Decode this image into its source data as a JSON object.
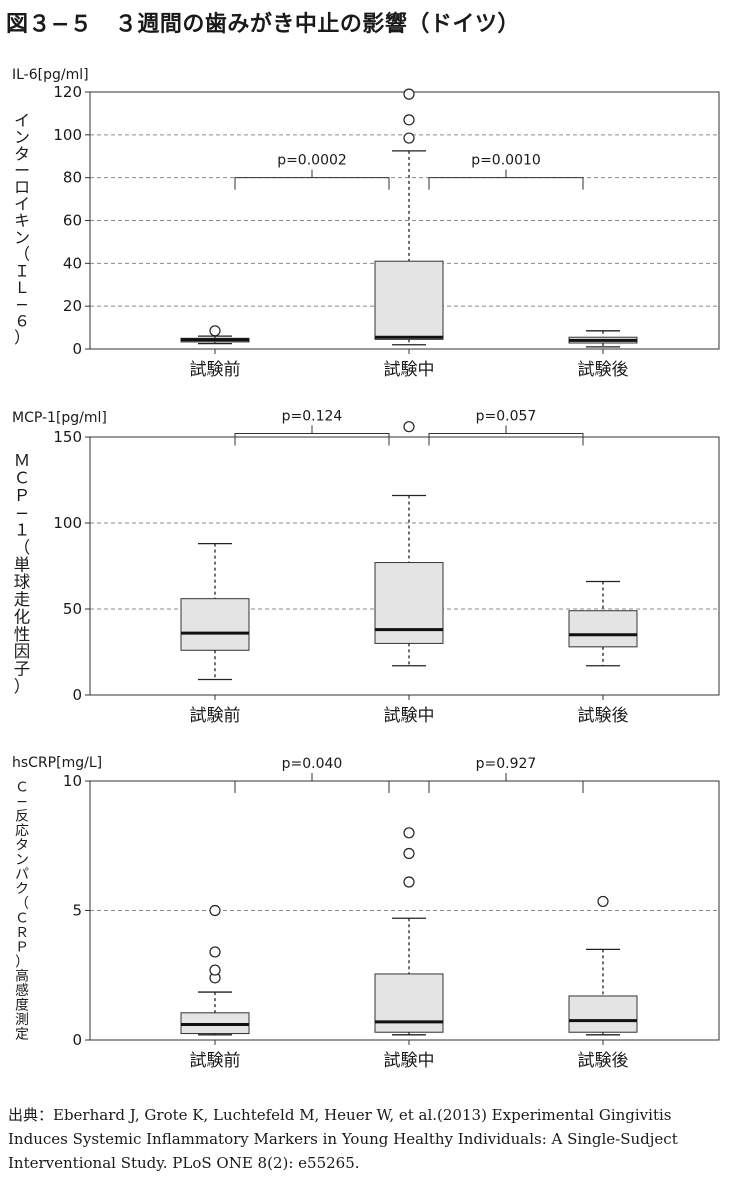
{
  "title": "図３−５　３週間の歯みがき中止の影響（ドイツ）",
  "source_lines": [
    "出典：Eberhard J, Grote K, Luchtefeld M, Heuer W, et al.(2013) Experimental Gingivitis",
    "Induces Systemic Inflammatory Markers in Young Healthy Individuals: A Single-Sudject",
    "Interventional Study. PLoS ONE 8(2): e55265."
  ],
  "chart_data": [
    {
      "type": "box",
      "unit_label": "IL-6[pg/ml]",
      "ylabel": "インターロイキン（ＩＬ−６）",
      "categories": [
        "試験前",
        "試験中",
        "試験後"
      ],
      "ylim": [
        0,
        120
      ],
      "yticks": [
        0,
        20,
        40,
        60,
        80,
        100,
        120
      ],
      "grid": "dashed",
      "boxes": [
        {
          "whisker_low": 2.5,
          "q1": 3.3,
          "median": 4.3,
          "q3": 5.0,
          "whisker_high": 6.0,
          "outliers": [
            8.5
          ]
        },
        {
          "whisker_low": 2.0,
          "q1": 4.5,
          "median": 5.5,
          "q3": 41.0,
          "whisker_high": 92.5,
          "outliers": [
            98.5,
            107,
            119
          ]
        },
        {
          "whisker_low": 1.0,
          "q1": 2.8,
          "median": 4.0,
          "q3": 5.5,
          "whisker_high": 8.5,
          "outliers": []
        }
      ],
      "comparisons": [
        {
          "from": 0,
          "to": 1,
          "label": "p=0.0002",
          "y": 80
        },
        {
          "from": 1,
          "to": 2,
          "label": "p=0.0010",
          "y": 80
        }
      ]
    },
    {
      "type": "box",
      "unit_label": "MCP-1[pg/ml]",
      "ylabel": "ＭＣＰ−１（単球走化性因子）",
      "categories": [
        "試験前",
        "試験中",
        "試験後"
      ],
      "ylim": [
        0,
        150
      ],
      "yticks": [
        0,
        50,
        100,
        150
      ],
      "grid": "dashed",
      "boxes": [
        {
          "whisker_low": 9,
          "q1": 26,
          "median": 36,
          "q3": 56,
          "whisker_high": 88,
          "outliers": []
        },
        {
          "whisker_low": 17,
          "q1": 30,
          "median": 38,
          "q3": 77,
          "whisker_high": 116,
          "outliers": [
            156
          ]
        },
        {
          "whisker_low": 17,
          "q1": 28,
          "median": 35,
          "q3": 49,
          "whisker_high": 66,
          "outliers": []
        }
      ],
      "comparisons": [
        {
          "from": 0,
          "to": 1,
          "label": "p=0.124",
          "y": 152
        },
        {
          "from": 1,
          "to": 2,
          "label": "p=0.057",
          "y": 152
        }
      ]
    },
    {
      "type": "box",
      "unit_label": "hsCRP[mg/L]",
      "ylabel": "Ｃ−反応タンパク（ＣＲＰ）高感度測定",
      "categories": [
        "試験前",
        "試験中",
        "試験後"
      ],
      "ylim": [
        0,
        10
      ],
      "yticks": [
        0,
        5,
        10
      ],
      "grid": "dashed",
      "boxes": [
        {
          "whisker_low": 0.2,
          "q1": 0.25,
          "median": 0.6,
          "q3": 1.05,
          "whisker_high": 1.85,
          "outliers": [
            2.4,
            2.7,
            3.4,
            5.0
          ]
        },
        {
          "whisker_low": 0.2,
          "q1": 0.3,
          "median": 0.7,
          "q3": 2.55,
          "whisker_high": 4.7,
          "outliers": [
            6.1,
            7.2,
            8.0
          ]
        },
        {
          "whisker_low": 0.2,
          "q1": 0.3,
          "median": 0.75,
          "q3": 1.7,
          "whisker_high": 3.5,
          "outliers": [
            5.35
          ]
        }
      ],
      "comparisons": [
        {
          "from": 0,
          "to": 1,
          "label": "p=0.040",
          "y": 10
        },
        {
          "from": 1,
          "to": 2,
          "label": "p=0.927",
          "y": 10
        }
      ]
    }
  ]
}
